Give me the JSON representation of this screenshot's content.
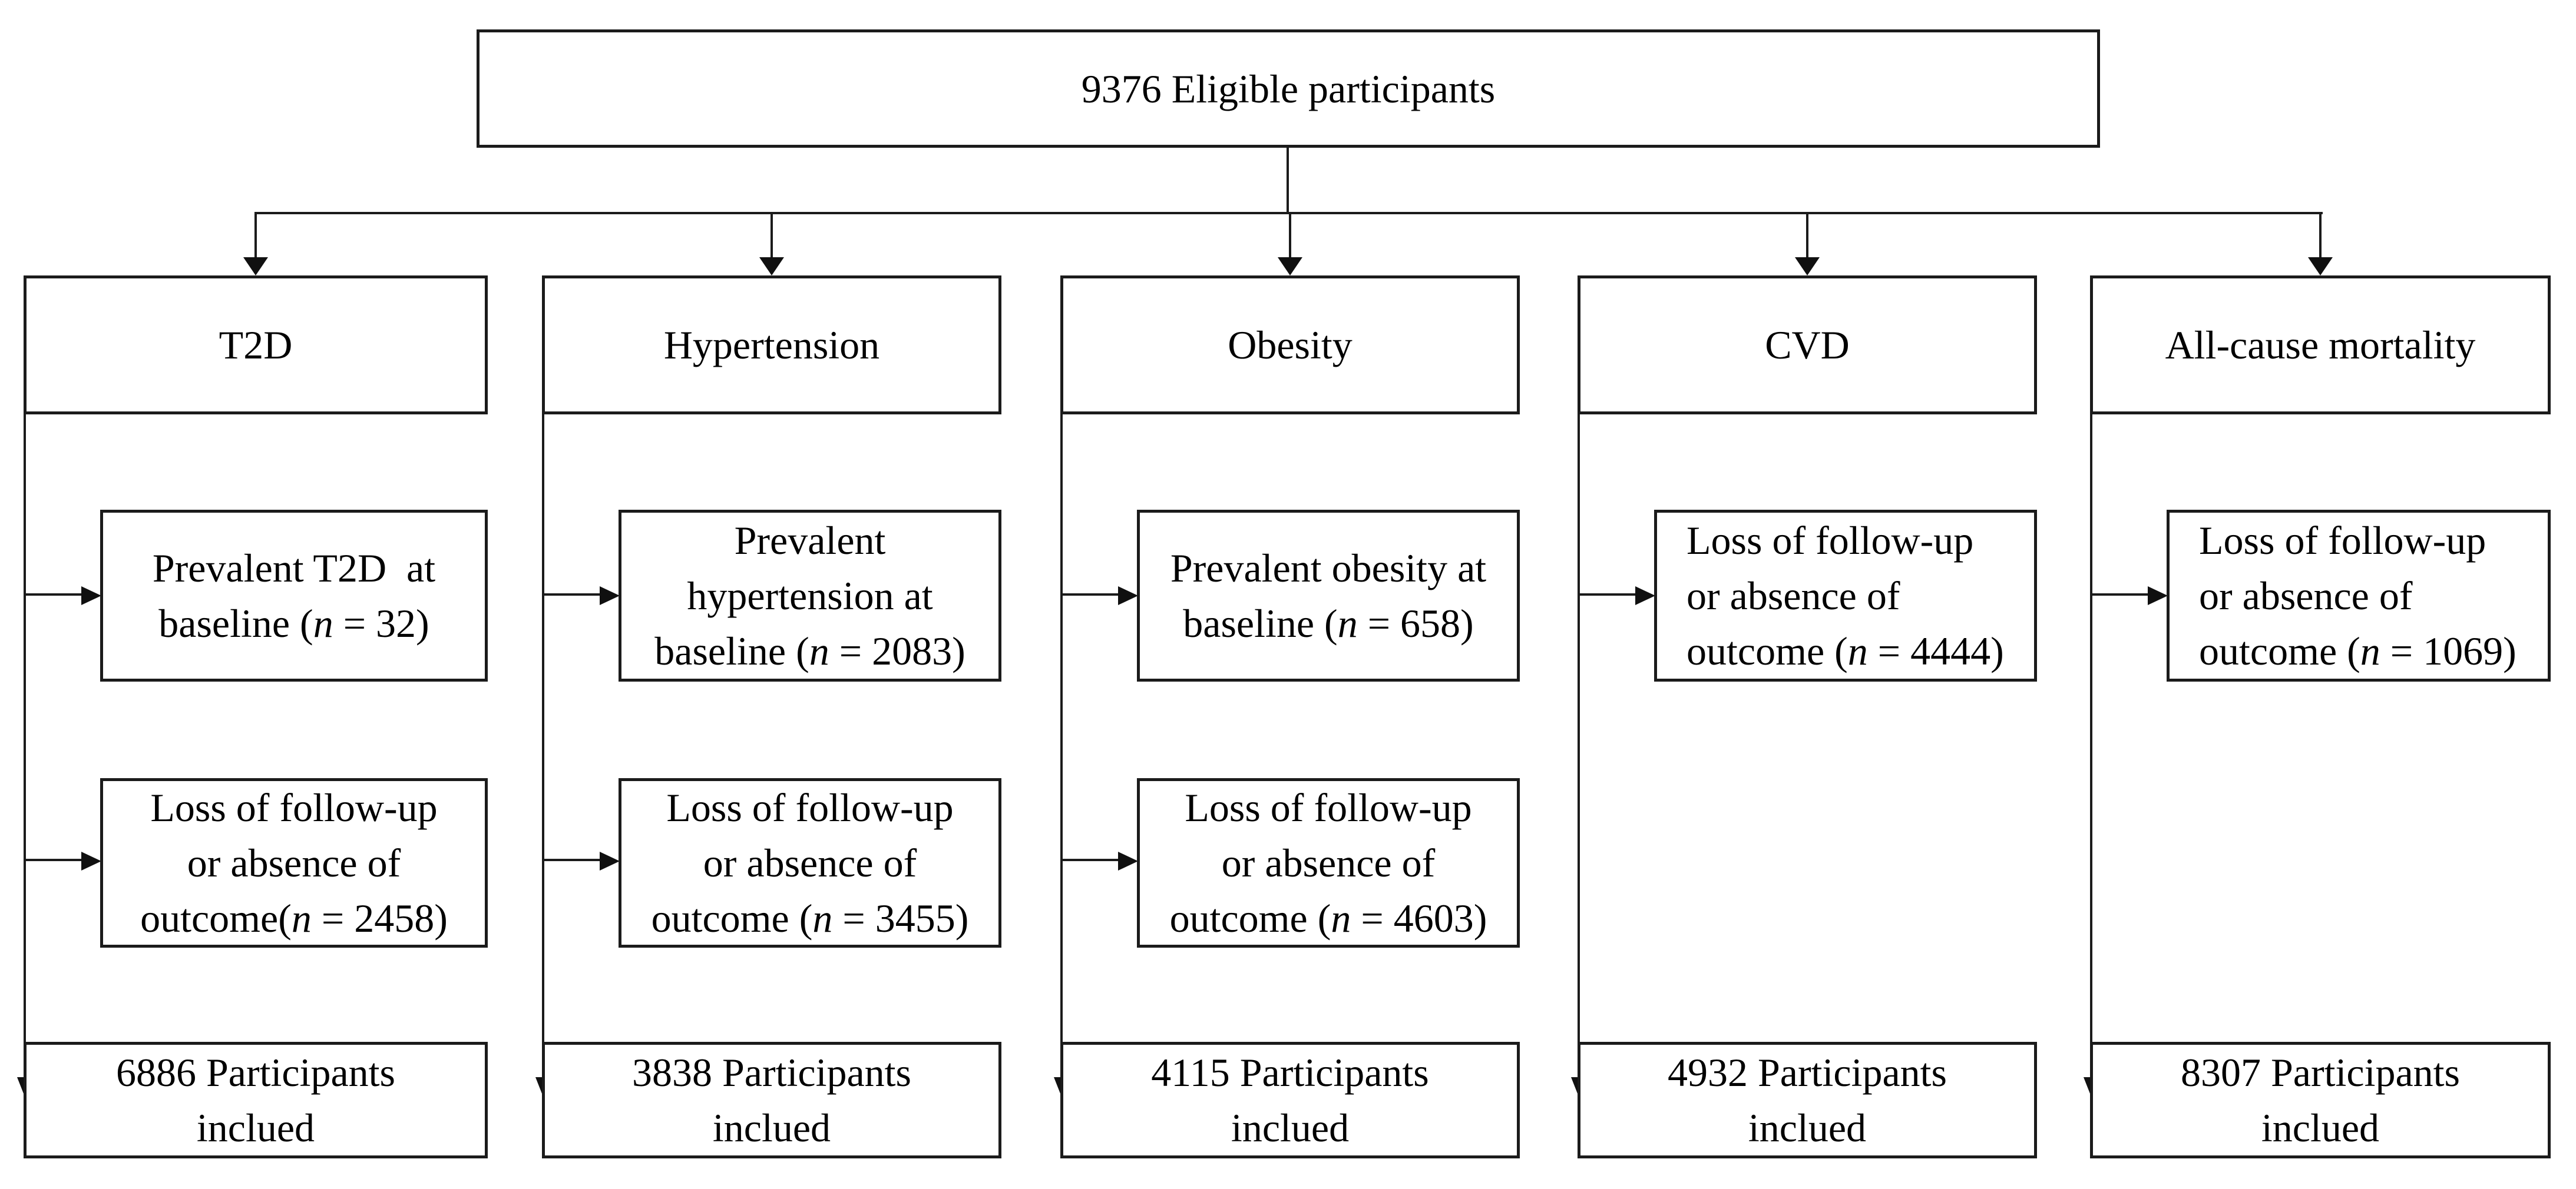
{
  "figure": {
    "root_label": "9376 Eligible participants",
    "columns": [
      {
        "header": "T2D",
        "exclusions": [
          {
            "lines": [
              "Prevalent T2D  at",
              "baseline (n = 32)"
            ]
          },
          {
            "lines": [
              "Loss of follow-up",
              "or absence of",
              "outcome(n = 2458)"
            ]
          }
        ],
        "result_lines": [
          "6886 Participants",
          "inclued"
        ]
      },
      {
        "header": "Hypertension",
        "exclusions": [
          {
            "lines": [
              "Prevalent",
              "hypertension at",
              "baseline (n = 2083)"
            ]
          },
          {
            "lines": [
              "Loss of follow-up",
              "or absence of",
              "outcome (n = 3455)"
            ]
          }
        ],
        "result_lines": [
          "3838 Participants",
          "inclued"
        ]
      },
      {
        "header": "Obesity",
        "exclusions": [
          {
            "lines": [
              "Prevalent obesity at",
              "baseline (n = 658)"
            ]
          },
          {
            "lines": [
              "Loss of follow-up",
              "or absence of",
              "outcome (n = 4603)"
            ]
          }
        ],
        "result_lines": [
          "4115 Participants",
          "inclued"
        ]
      },
      {
        "header": "CVD",
        "exclusions": [
          {
            "lines": [
              "Loss of follow-up",
              "or absence of",
              "outcome (n = 4444)"
            ]
          }
        ],
        "result_lines": [
          "4932 Participants",
          "inclued"
        ]
      },
      {
        "header": "All-cause mortality",
        "exclusions": [
          {
            "lines": [
              "Loss of follow-up",
              "or absence of",
              "outcome (n = 1069)"
            ]
          }
        ],
        "result_lines": [
          "8307 Participants",
          "inclued"
        ]
      }
    ]
  },
  "colors": {
    "line": "#1b1b1b",
    "text": "#000000",
    "background": "#ffffff"
  }
}
